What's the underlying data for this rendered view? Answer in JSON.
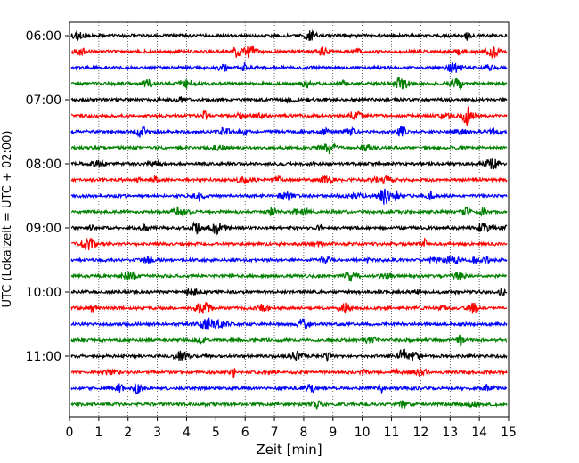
{
  "chart_data": {
    "type": "line",
    "subtype": "helicorder",
    "xlabel": "Zeit  [min]",
    "ylabel": "UTC (Lokalzeit = UTC + 02:00)",
    "xlim": [
      0,
      15
    ],
    "x_ticks": [
      "0",
      "1",
      "2",
      "3",
      "4",
      "5",
      "6",
      "7",
      "8",
      "9",
      "10",
      "11",
      "12",
      "13",
      "14",
      "15"
    ],
    "y_ticks": [
      "06:00",
      "07:00",
      "08:00",
      "09:00",
      "10:00",
      "11:00"
    ],
    "grid": "vertical dotted lines at each minute",
    "trace_colors": [
      "#000000",
      "#ff0000",
      "#0000ff",
      "#008000"
    ],
    "traces": [
      {
        "start": "06:00",
        "color": "#000000"
      },
      {
        "start": "06:15",
        "color": "#ff0000"
      },
      {
        "start": "06:30",
        "color": "#0000ff"
      },
      {
        "start": "06:45",
        "color": "#008000"
      },
      {
        "start": "07:00",
        "color": "#000000"
      },
      {
        "start": "07:15",
        "color": "#ff0000"
      },
      {
        "start": "07:30",
        "color": "#0000ff"
      },
      {
        "start": "07:45",
        "color": "#008000"
      },
      {
        "start": "08:00",
        "color": "#000000"
      },
      {
        "start": "08:15",
        "color": "#ff0000"
      },
      {
        "start": "08:30",
        "color": "#0000ff"
      },
      {
        "start": "08:45",
        "color": "#008000"
      },
      {
        "start": "09:00",
        "color": "#000000"
      },
      {
        "start": "09:15",
        "color": "#ff0000"
      },
      {
        "start": "09:30",
        "color": "#0000ff"
      },
      {
        "start": "09:45",
        "color": "#008000"
      },
      {
        "start": "10:00",
        "color": "#000000"
      },
      {
        "start": "10:15",
        "color": "#ff0000"
      },
      {
        "start": "10:30",
        "color": "#0000ff"
      },
      {
        "start": "10:45",
        "color": "#008000"
      },
      {
        "start": "11:00",
        "color": "#000000"
      },
      {
        "start": "11:15",
        "color": "#ff0000"
      },
      {
        "start": "11:30",
        "color": "#0000ff"
      },
      {
        "start": "11:45",
        "color": "#008000"
      }
    ]
  }
}
